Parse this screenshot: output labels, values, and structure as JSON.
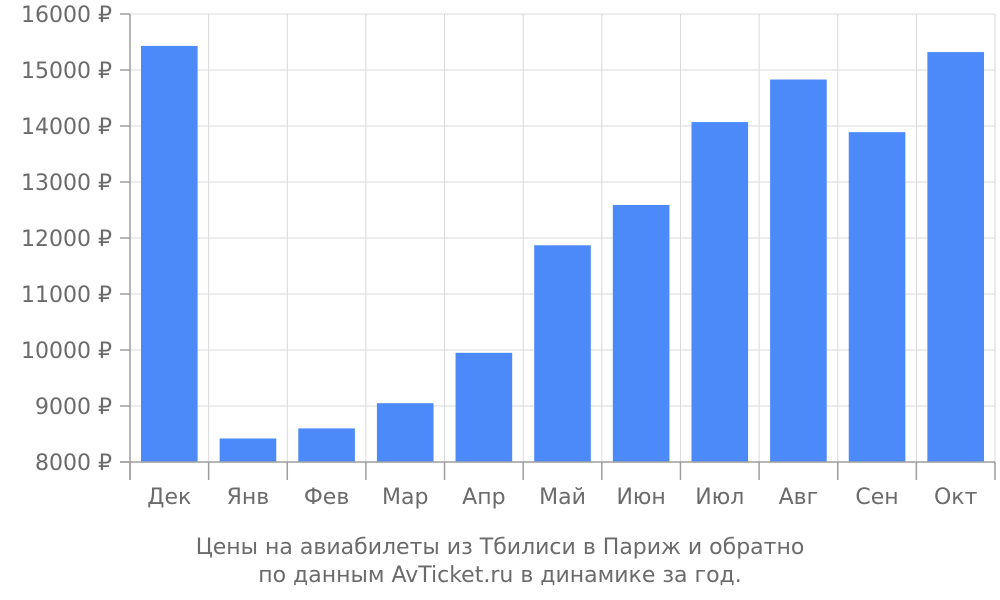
{
  "chart_data": {
    "type": "bar",
    "categories": [
      "Дек",
      "Янв",
      "Фев",
      "Мар",
      "Апр",
      "Май",
      "Июн",
      "Июл",
      "Авг",
      "Сен",
      "Окт"
    ],
    "series": [
      {
        "values": [
          15430,
          8420,
          8600,
          9050,
          9950,
          11870,
          12590,
          14070,
          14830,
          13890,
          15320
        ]
      }
    ],
    "ylim": [
      8000,
      16000
    ],
    "yticks": [
      8000,
      9000,
      10000,
      11000,
      12000,
      13000,
      14000,
      15000,
      16000
    ],
    "ytick_labels": [
      "8000 ₽",
      "9000 ₽",
      "10000 ₽",
      "11000 ₽",
      "12000 ₽",
      "13000 ₽",
      "14000 ₽",
      "15000 ₽",
      "16000 ₽"
    ],
    "caption_lines": [
      "Цены на авиабилеты из Тбилиси в Париж и обратно",
      "по данным AvTicket.ru в динамике за год."
    ],
    "grid": true,
    "bar_color": "#4d8af9"
  }
}
